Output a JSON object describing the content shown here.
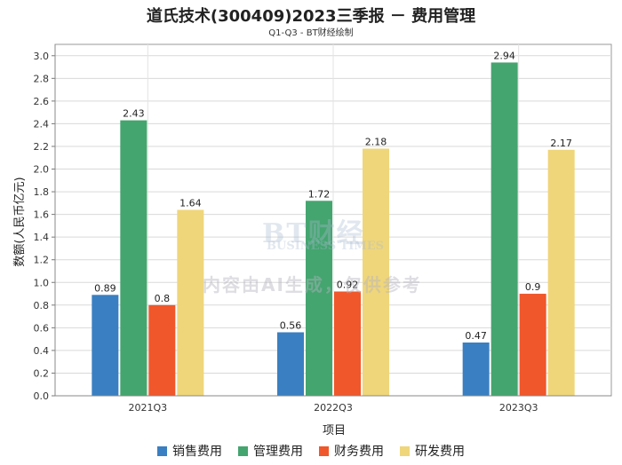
{
  "chart_data": {
    "type": "bar",
    "title": "道氏技术(300409)2023三季报 － 费用管理",
    "subtitle": "Q1-Q3 - BT财经绘制",
    "xlabel": "项目",
    "ylabel": "数额(人民币亿元)",
    "ylim": [
      0,
      3.1
    ],
    "yticks": [
      "0.0",
      "0.2",
      "0.4",
      "0.6",
      "0.8",
      "1.0",
      "1.2",
      "1.4",
      "1.6",
      "1.8",
      "2.0",
      "2.2",
      "2.4",
      "2.6",
      "2.8",
      "3.0"
    ],
    "grid": true,
    "legend_position": "bottom",
    "categories": [
      "2021Q3",
      "2022Q3",
      "2023Q3"
    ],
    "series": [
      {
        "name": "销售费用",
        "color": "#3a7fc1",
        "values": [
          0.89,
          0.56,
          0.47
        ],
        "labels": [
          "0.89",
          "0.56",
          "0.47"
        ]
      },
      {
        "name": "管理费用",
        "color": "#44a56f",
        "values": [
          2.43,
          1.72,
          2.94
        ],
        "labels": [
          "2.43",
          "1.72",
          "2.94"
        ]
      },
      {
        "name": "财务费用",
        "color": "#f0572a",
        "values": [
          0.8,
          0.92,
          0.9
        ],
        "labels": [
          "0.8",
          "0.92",
          "0.9"
        ]
      },
      {
        "name": "研发费用",
        "color": "#efd67a",
        "values": [
          1.64,
          2.18,
          2.17
        ],
        "labels": [
          "1.64",
          "2.18",
          "2.17"
        ]
      }
    ]
  },
  "watermark": {
    "brand": "BT财经",
    "sub": "BUSINESS TIMES",
    "note": "内容由AI生成，仅供参考"
  }
}
